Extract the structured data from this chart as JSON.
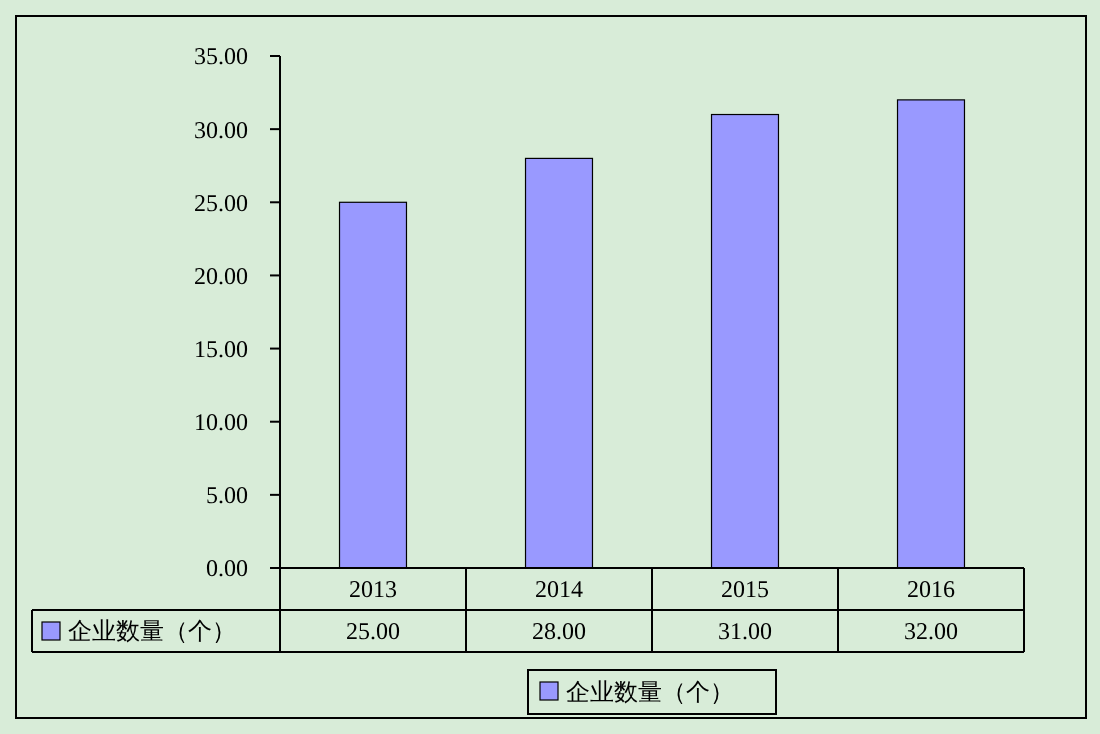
{
  "chart_data": {
    "type": "bar",
    "categories": [
      "2013",
      "2014",
      "2015",
      "2016"
    ],
    "series": [
      {
        "name": "企业数量（个）",
        "color": "#9999ff",
        "values": [
          25,
          28,
          31,
          32
        ],
        "value_labels": [
          "25.00",
          "28.00",
          "31.00",
          "32.00"
        ]
      }
    ],
    "ylim": [
      0,
      35
    ],
    "yticks": [
      {
        "value": 0,
        "label": "0.00"
      },
      {
        "value": 5,
        "label": "5.00"
      },
      {
        "value": 10,
        "label": "10.00"
      },
      {
        "value": 15,
        "label": "15.00"
      },
      {
        "value": 20,
        "label": "20.00"
      },
      {
        "value": 25,
        "label": "25.00"
      },
      {
        "value": 30,
        "label": "30.00"
      },
      {
        "value": 35,
        "label": "35.00"
      }
    ],
    "legend": "bottom"
  }
}
